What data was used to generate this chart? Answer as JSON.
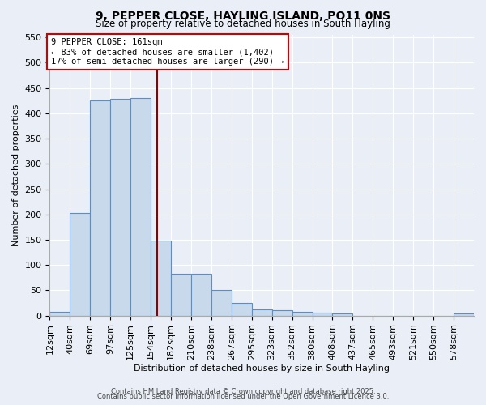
{
  "title": "9, PEPPER CLOSE, HAYLING ISLAND, PO11 0NS",
  "subtitle": "Size of property relative to detached houses in South Hayling",
  "xlabel": "Distribution of detached houses by size in South Hayling",
  "ylabel": "Number of detached properties",
  "bar_categories": [
    "12sqm",
    "40sqm",
    "69sqm",
    "97sqm",
    "125sqm",
    "154sqm",
    "182sqm",
    "210sqm",
    "238sqm",
    "267sqm",
    "295sqm",
    "323sqm",
    "352sqm",
    "380sqm",
    "408sqm",
    "437sqm",
    "465sqm",
    "493sqm",
    "521sqm",
    "550sqm",
    "578sqm"
  ],
  "bar_values": [
    8,
    203,
    425,
    428,
    430,
    148,
    83,
    83,
    50,
    25,
    12,
    10,
    7,
    6,
    4,
    0,
    0,
    0,
    0,
    0,
    4
  ],
  "bar_color": "#c9d9ec",
  "bar_edge_color": "#5b8ec4",
  "vline_x": 161,
  "vline_color": "#8b0000",
  "annotation_title": "9 PEPPER CLOSE: 161sqm",
  "annotation_line1": "← 83% of detached houses are smaller (1,402)",
  "annotation_line2": "17% of semi-detached houses are larger (290) →",
  "annotation_box_color": "#cc0000",
  "ylim": [
    0,
    555
  ],
  "yticks": [
    0,
    50,
    100,
    150,
    200,
    250,
    300,
    350,
    400,
    450,
    500,
    550
  ],
  "bg_color": "#eaeff7",
  "grid_color": "#ffffff",
  "footer_line1": "Contains HM Land Registry data © Crown copyright and database right 2025.",
  "footer_line2": "Contains public sector information licensed under the Open Government Licence 3.0.",
  "bin_width": 28
}
